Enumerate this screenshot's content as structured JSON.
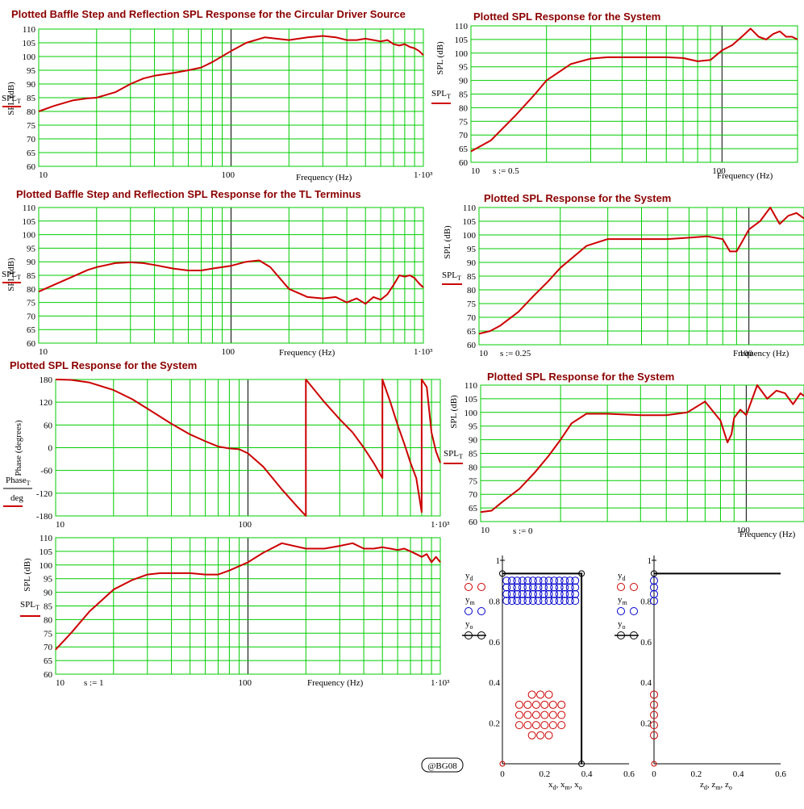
{
  "colors": {
    "grid": "#00cc00",
    "curve": "#cc0000",
    "title": "#8b0000",
    "axis": "#000000",
    "marker_d": "#cc0000",
    "marker_m": "#0000cc",
    "marker_o": "#000000"
  },
  "watermark": "@BG08",
  "chart_data": [
    {
      "id": "p1",
      "type": "line",
      "xscale": "log",
      "title": "Plotted Baffle Step and Reflection SPL Response for the Circular Driver Source",
      "xlabel": "Frequency (Hz)",
      "ylabel": "SPL (dB)",
      "legend_label": "SPL_T",
      "xlim": [
        10,
        1000
      ],
      "ylim": [
        60,
        110
      ],
      "yticks": [
        "60",
        "65",
        "70",
        "75",
        "80",
        "85",
        "90",
        "95",
        "100",
        "105",
        "110"
      ],
      "xticks": [
        "10",
        "100",
        "1·10³"
      ],
      "note": "",
      "series": [
        {
          "x": [
            10,
            12,
            15,
            18,
            20,
            25,
            30,
            35,
            40,
            50,
            60,
            70,
            80,
            100,
            120,
            150,
            200,
            250,
            300,
            350,
            400,
            450,
            500,
            550,
            600,
            650,
            700,
            750,
            800,
            850,
            900,
            950,
            1000
          ],
          "y": [
            80,
            82,
            84,
            84.8,
            85,
            87,
            90,
            92,
            93,
            94,
            95,
            96,
            98,
            102,
            105,
            107,
            106,
            107,
            107.5,
            107,
            106,
            106,
            106.5,
            106,
            105.5,
            106,
            104.5,
            104,
            104.5,
            103.5,
            103,
            102,
            100.5
          ]
        }
      ]
    },
    {
      "id": "p2",
      "type": "line",
      "xscale": "log",
      "title": "Plotted Baffle Step and Reflection SPL Response for the TL Terminus",
      "xlabel": "Frequency (Hz)",
      "ylabel": "SPL (dB)",
      "legend_label": "SPL_T",
      "xlim": [
        10,
        1000
      ],
      "ylim": [
        60,
        110
      ],
      "yticks": [
        "60",
        "65",
        "70",
        "75",
        "80",
        "85",
        "90",
        "95",
        "100",
        "105",
        "110"
      ],
      "xticks": [
        "10",
        "100",
        "1·10³"
      ],
      "note": "",
      "series": [
        {
          "x": [
            10,
            12,
            15,
            18,
            20,
            25,
            30,
            35,
            40,
            50,
            60,
            70,
            80,
            100,
            120,
            140,
            160,
            200,
            250,
            300,
            350,
            400,
            450,
            500,
            550,
            600,
            650,
            700,
            750,
            800,
            850,
            900,
            950,
            1000
          ],
          "y": [
            79,
            81.5,
            84.5,
            87,
            88,
            89.5,
            89.8,
            89.5,
            88.8,
            87.5,
            86.8,
            86.8,
            87.5,
            88.5,
            90,
            90.5,
            88,
            80,
            77,
            76.5,
            77,
            75,
            76.5,
            74.5,
            77,
            76,
            78,
            81.5,
            85,
            84.5,
            85,
            84,
            82,
            80.5
          ]
        }
      ]
    },
    {
      "id": "p3",
      "type": "line",
      "xscale": "log",
      "title": "Plotted SPL Response for the System",
      "xlabel": "",
      "ylabel": "Phase (degrees)",
      "legend_label": "Phase_T / deg",
      "xlim": [
        10,
        1000
      ],
      "ylim": [
        -180,
        180
      ],
      "yticks": [
        "-180",
        "-120",
        "-60",
        "0",
        "60",
        "120",
        "180"
      ],
      "xticks": [
        "10",
        "100",
        "1·10³"
      ],
      "note": "",
      "series": [
        {
          "x": [
            10,
            12,
            15,
            20,
            25,
            30,
            40,
            50,
            60,
            70,
            80,
            90,
            100,
            120,
            150,
            180,
            200,
            200.01,
            250,
            300,
            350,
            400,
            450,
            500,
            500.01,
            550,
            600,
            650,
            700,
            750,
            800,
            800.01,
            850,
            900,
            950,
            1000
          ],
          "y": [
            180,
            179,
            172,
            152,
            128,
            103,
            63,
            35,
            17,
            3,
            -2,
            -4,
            -15,
            -50,
            -110,
            -155,
            -180,
            180,
            120,
            75,
            40,
            0,
            -40,
            -80,
            180,
            120,
            60,
            10,
            -40,
            -80,
            -170,
            180,
            160,
            40,
            -10,
            -40
          ]
        }
      ]
    },
    {
      "id": "p4",
      "type": "line",
      "xscale": "log",
      "title": "",
      "xlabel": "Frequency (Hz)",
      "ylabel": "SPL (dB)",
      "legend_label": "SPL_T",
      "xlim": [
        10,
        1000
      ],
      "ylim": [
        60,
        110
      ],
      "yticks": [
        "60",
        "65",
        "70",
        "75",
        "80",
        "85",
        "90",
        "95",
        "100",
        "105",
        "110"
      ],
      "xticks": [
        "10",
        "100",
        "1·10³"
      ],
      "note": "s := 1",
      "series": [
        {
          "x": [
            10,
            12,
            15,
            20,
            25,
            30,
            35,
            40,
            50,
            60,
            70,
            80,
            100,
            120,
            150,
            200,
            250,
            300,
            350,
            400,
            450,
            500,
            550,
            600,
            650,
            700,
            750,
            800,
            850,
            900,
            950,
            1000
          ],
          "y": [
            69,
            75,
            83,
            91,
            94.5,
            96.5,
            97,
            97,
            97,
            96.5,
            96.5,
            98,
            101,
            104.5,
            108,
            106,
            106,
            107,
            108,
            106,
            106,
            106.5,
            106,
            105.5,
            106,
            105,
            104,
            103,
            104,
            101,
            103,
            101
          ]
        }
      ]
    },
    {
      "id": "p5",
      "type": "line",
      "xscale": "log",
      "title": "Plotted SPL Response for the System",
      "xlabel": "Frequency (Hz)",
      "ylabel": "SPL (dB)",
      "legend_label": "SPL_T",
      "xlim": [
        10,
        200
      ],
      "ylim": [
        60,
        110
      ],
      "yticks": [
        "60",
        "65",
        "70",
        "75",
        "80",
        "85",
        "90",
        "95",
        "100",
        "105",
        "110"
      ],
      "xticks": [
        "10",
        "100"
      ],
      "note": "s := 0.5",
      "series": [
        {
          "x": [
            10,
            12,
            15,
            18,
            20,
            25,
            30,
            35,
            40,
            50,
            60,
            70,
            80,
            90,
            100,
            110,
            120,
            130,
            140,
            150,
            160,
            170,
            180,
            190,
            200
          ],
          "y": [
            64,
            68,
            77,
            85,
            90,
            96,
            98,
            98.5,
            98.5,
            98.5,
            98.5,
            98.2,
            97,
            97.5,
            101,
            103,
            106,
            109,
            106,
            105,
            107,
            108,
            106,
            106,
            105
          ]
        }
      ]
    },
    {
      "id": "p6",
      "type": "line",
      "xscale": "log",
      "title": "Plotted SPL Response for the System",
      "xlabel": "Frequency (Hz)",
      "ylabel": "SPL (dB)",
      "legend_label": "SPL_T",
      "xlim": [
        10,
        160
      ],
      "ylim": [
        60,
        110
      ],
      "yticks": [
        "60",
        "65",
        "70",
        "75",
        "80",
        "85",
        "90",
        "95",
        "100",
        "105",
        "110"
      ],
      "xticks": [
        "10",
        "100"
      ],
      "note": "s := 0.25",
      "series": [
        {
          "x": [
            10,
            11,
            12,
            14,
            16,
            18,
            20,
            25,
            30,
            40,
            50,
            60,
            70,
            80,
            85,
            90,
            95,
            100,
            110,
            120,
            130,
            140,
            150,
            160
          ],
          "y": [
            64,
            65,
            67,
            72,
            78,
            83,
            88,
            96,
            98.5,
            98.5,
            98.5,
            99,
            99.5,
            98.5,
            94,
            94,
            98,
            102,
            105,
            110,
            104,
            107,
            108,
            106
          ]
        }
      ]
    },
    {
      "id": "p7",
      "type": "line",
      "xscale": "log",
      "title": "Plotted SPL Response for the System",
      "xlabel": "Frequency (Hz)",
      "ylabel": "SPL (dB)",
      "legend_label": "SPL_T",
      "xlim": [
        10,
        165
      ],
      "ylim": [
        60,
        110
      ],
      "yticks": [
        "60",
        "65",
        "70",
        "75",
        "80",
        "85",
        "90",
        "95",
        "100",
        "105",
        "110"
      ],
      "xticks": [
        "10",
        "100"
      ],
      "note": "s := 0",
      "series": [
        {
          "x": [
            10,
            11,
            12,
            14,
            16,
            18,
            20,
            22,
            25,
            30,
            40,
            50,
            60,
            70,
            80,
            85,
            88,
            90,
            95,
            100,
            110,
            120,
            130,
            140,
            150,
            160,
            165
          ],
          "y": [
            63.5,
            64,
            67,
            72,
            78,
            84,
            90,
            96,
            99.5,
            99.5,
            99,
            99,
            100,
            104,
            97,
            89,
            92,
            98,
            101,
            99,
            110,
            105,
            108,
            107,
            103,
            107,
            106
          ]
        }
      ]
    },
    {
      "id": "p8",
      "type": "scatter",
      "title": "",
      "xlabel": "x_d, x_m, x_o",
      "ylabel": "",
      "legend": [
        "y_d",
        "y_m",
        "y_o"
      ],
      "xlim": [
        0,
        0.6
      ],
      "ylim": [
        0,
        1
      ],
      "xticks": [
        "0",
        "0.2",
        "0.4",
        "0.6"
      ],
      "yticks": [
        "0.2",
        "0.4",
        "0.6",
        "0.8",
        "1"
      ]
    },
    {
      "id": "p9",
      "type": "scatter",
      "title": "",
      "xlabel": "z_d, z_m, z_o",
      "ylabel": "",
      "legend": [
        "y_d",
        "y_m",
        "y_o"
      ],
      "xlim": [
        0,
        0.6
      ],
      "ylim": [
        0,
        1
      ],
      "xticks": [
        "0",
        "0.2",
        "0.4",
        "0.6"
      ],
      "yticks": [
        "0.2",
        "0.4",
        "0.6",
        "0.8",
        "1"
      ]
    }
  ]
}
